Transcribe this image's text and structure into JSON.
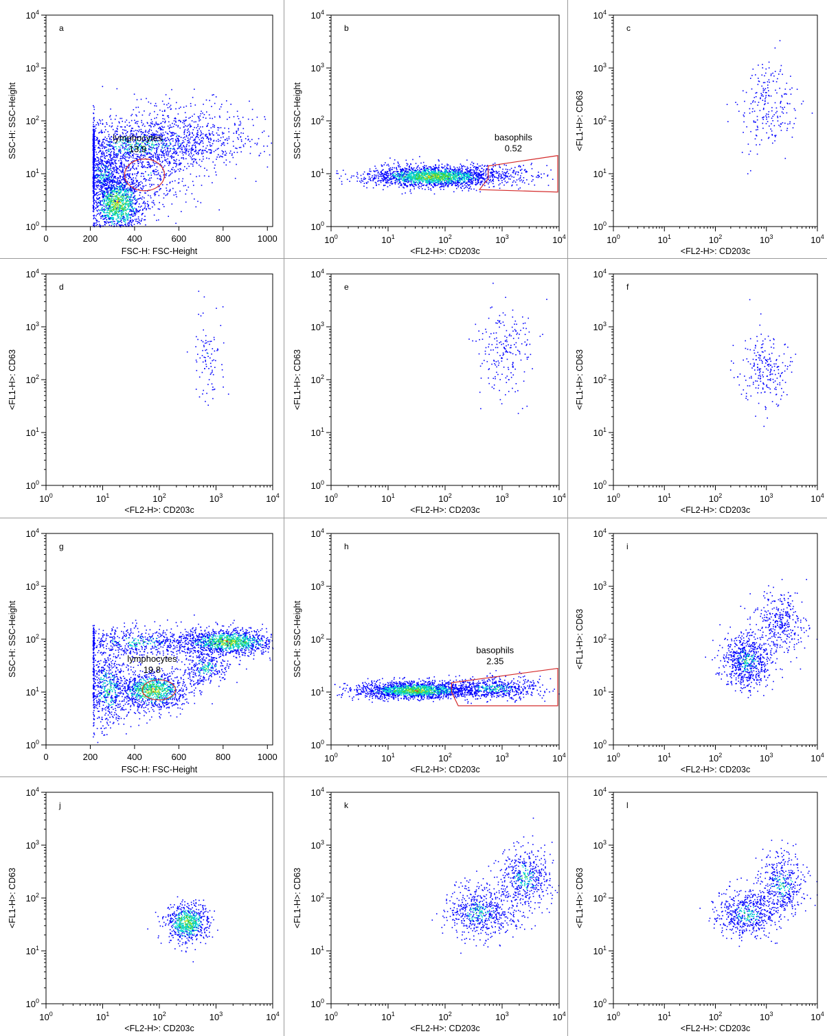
{
  "figure": {
    "colors": {
      "background": "#ffffff",
      "axis": "#000000",
      "gate": "#d42a2a",
      "density_low": "#0000ff",
      "density_mid": "#00d2d2",
      "density_midhigh": "#3cd23c",
      "density_high": "#f0e61e",
      "density_peak": "#ff0000"
    }
  },
  "chart_data": [
    {
      "id": "a",
      "type": "scatter",
      "panel_label": "a",
      "xlabel": "FSC-H: FSC-Height",
      "ylabel": "SSC-H: SSC-Height",
      "xscale": "linear",
      "yscale": "log",
      "xlim": [
        0,
        1024
      ],
      "ylim": [
        1,
        10000
      ],
      "xticks": [
        "0",
        "200",
        "400",
        "600",
        "800",
        "1000"
      ],
      "yticks": [
        "10^0",
        "10^1",
        "10^2",
        "10^3",
        "10^4"
      ],
      "populations": [
        {
          "center": [
            320,
            2.8
          ],
          "spread": [
            60,
            0.3
          ],
          "count": 1300,
          "density": "high"
        },
        {
          "center": [
            420,
            35
          ],
          "spread": [
            220,
            0.22
          ],
          "count": 1100,
          "density": "medium"
        },
        {
          "center": [
            260,
            10
          ],
          "spread": [
            50,
            0.25
          ],
          "count": 500,
          "density": "medium"
        },
        {
          "center": [
            600,
            60
          ],
          "spread": [
            200,
            0.35
          ],
          "count": 500,
          "density": "low"
        },
        {
          "center": [
            450,
            10
          ],
          "spread": [
            120,
            0.35
          ],
          "count": 400,
          "density": "low"
        }
      ],
      "x_cutoff": 210,
      "gates": [
        {
          "name": "lymphocytes",
          "value": "13.9",
          "shape": "ellipse",
          "center": [
            445,
            9.5
          ],
          "rx": 90,
          "ry_decades": 0.3
        }
      ]
    },
    {
      "id": "b",
      "type": "scatter",
      "panel_label": "b",
      "xlabel": "<FL2-H>: CD203c",
      "ylabel": "SSC-H: SSC-Height",
      "xscale": "log",
      "yscale": "log",
      "xlim": [
        1,
        10000
      ],
      "ylim": [
        1,
        10000
      ],
      "xticks": [
        "10^0",
        "10^1",
        "10^2",
        "10^3",
        "10^4"
      ],
      "yticks": [
        "10^0",
        "10^1",
        "10^2",
        "10^3",
        "10^4"
      ],
      "populations": [
        {
          "center": [
            60,
            9
          ],
          "spread": [
            0.55,
            0.1
          ],
          "count": 2000,
          "density": "high"
        },
        {
          "center": [
            1200,
            10
          ],
          "spread": [
            0.45,
            0.12
          ],
          "count": 150,
          "density": "low"
        }
      ],
      "gates": [
        {
          "name": "basophils",
          "value": "0.52",
          "shape": "polygon",
          "points": [
            [
              570,
              8
            ],
            [
              570,
              14
            ],
            [
              10000,
              22
            ],
            [
              10000,
              4.5
            ],
            [
              400,
              5
            ]
          ]
        }
      ]
    },
    {
      "id": "c",
      "type": "scatter",
      "panel_label": "c",
      "xlabel": "<FL2-H>: CD203c",
      "ylabel": "<FL1-H>: CD63",
      "xscale": "log",
      "yscale": "log",
      "xlim": [
        1,
        10000
      ],
      "ylim": [
        1,
        10000
      ],
      "xticks": [
        "10^0",
        "10^1",
        "10^2",
        "10^3",
        "10^4"
      ],
      "yticks": [
        "10^0",
        "10^1",
        "10^2",
        "10^3",
        "10^4"
      ],
      "populations": [
        {
          "center": [
            1100,
            200
          ],
          "spread": [
            0.3,
            0.4
          ],
          "count": 220,
          "density": "low"
        }
      ],
      "gates": []
    },
    {
      "id": "d",
      "type": "scatter",
      "panel_label": "d",
      "xlabel": "<FL2-H>: CD203c",
      "ylabel": "<FL1-H>: CD63",
      "xscale": "log",
      "yscale": "log",
      "xlim": [
        1,
        10000
      ],
      "ylim": [
        1,
        10000
      ],
      "xticks": [
        "10^0",
        "10^1",
        "10^2",
        "10^3",
        "10^4"
      ],
      "yticks": [
        "10^0",
        "10^1",
        "10^2",
        "10^3",
        "10^4"
      ],
      "populations": [
        {
          "center": [
            700,
            300
          ],
          "spread": [
            0.15,
            0.4
          ],
          "count": 90,
          "density": "low"
        }
      ],
      "gates": []
    },
    {
      "id": "e",
      "type": "scatter",
      "panel_label": "e",
      "xlabel": "<FL2-H>: CD203c",
      "ylabel": "<FL1-H>: CD63",
      "xscale": "log",
      "yscale": "log",
      "xlim": [
        1,
        10000
      ],
      "ylim": [
        1,
        10000
      ],
      "xticks": [
        "10^0",
        "10^1",
        "10^2",
        "10^3",
        "10^4"
      ],
      "yticks": [
        "10^0",
        "10^1",
        "10^2",
        "10^3",
        "10^4"
      ],
      "populations": [
        {
          "center": [
            1200,
            350
          ],
          "spread": [
            0.25,
            0.4
          ],
          "count": 200,
          "density": "low"
        }
      ],
      "gates": []
    },
    {
      "id": "f",
      "type": "scatter",
      "panel_label": "f",
      "xlabel": "<FL2-H>: CD203c",
      "ylabel": "<FL1-H>: CD63",
      "xscale": "log",
      "yscale": "log",
      "xlim": [
        1,
        10000
      ],
      "ylim": [
        1,
        10000
      ],
      "xticks": [
        "10^0",
        "10^1",
        "10^2",
        "10^3",
        "10^4"
      ],
      "yticks": [
        "10^0",
        "10^1",
        "10^2",
        "10^3",
        "10^4"
      ],
      "populations": [
        {
          "center": [
            900,
            150
          ],
          "spread": [
            0.25,
            0.35
          ],
          "count": 220,
          "density": "low"
        }
      ],
      "gates": []
    },
    {
      "id": "g",
      "type": "scatter",
      "panel_label": "g",
      "xlabel": "FSC-H: FSC-Height",
      "ylabel": "SSC-H: SSC-Height",
      "xscale": "linear",
      "yscale": "log",
      "xlim": [
        0,
        1024
      ],
      "ylim": [
        1,
        10000
      ],
      "xticks": [
        "0",
        "200",
        "400",
        "600",
        "800",
        "1000"
      ],
      "yticks": [
        "10^0",
        "10^1",
        "10^2",
        "10^3",
        "10^4"
      ],
      "populations": [
        {
          "center": [
            820,
            90
          ],
          "spread": [
            110,
            0.12
          ],
          "count": 1200,
          "density": "high"
        },
        {
          "center": [
            480,
            11
          ],
          "spread": [
            80,
            0.18
          ],
          "count": 1000,
          "density": "high"
        },
        {
          "center": [
            420,
            90
          ],
          "spread": [
            180,
            0.15
          ],
          "count": 600,
          "density": "medium"
        },
        {
          "center": [
            280,
            12
          ],
          "spread": [
            60,
            0.4
          ],
          "count": 700,
          "density": "medium"
        },
        {
          "center": [
            720,
            30
          ],
          "spread": [
            60,
            0.18
          ],
          "count": 300,
          "density": "medium"
        }
      ],
      "x_cutoff": 210,
      "gates": [
        {
          "name": "lymphocytes",
          "value": "19.8",
          "shape": "ellipse",
          "center": [
            510,
            11
          ],
          "rx": 75,
          "ry_decades": 0.19
        }
      ]
    },
    {
      "id": "h",
      "type": "scatter",
      "panel_label": "h",
      "xlabel": "<FL2-H>: CD203c",
      "ylabel": "SSC-H: SSC-Height",
      "xscale": "log",
      "yscale": "log",
      "xlim": [
        1,
        10000
      ],
      "ylim": [
        1,
        10000
      ],
      "xticks": [
        "10^0",
        "10^1",
        "10^2",
        "10^3",
        "10^4"
      ],
      "yticks": [
        "10^0",
        "10^1",
        "10^2",
        "10^3",
        "10^4"
      ],
      "populations": [
        {
          "center": [
            30,
            11
          ],
          "spread": [
            0.5,
            0.08
          ],
          "count": 1700,
          "density": "high"
        },
        {
          "center": [
            700,
            12
          ],
          "spread": [
            0.45,
            0.1
          ],
          "count": 600,
          "density": "medium"
        }
      ],
      "gates": [
        {
          "name": "basophils",
          "value": "2.35",
          "shape": "polygon",
          "points": [
            [
              130,
              15
            ],
            [
              130,
              10
            ],
            [
              170,
              5.5
            ],
            [
              10000,
              5.5
            ],
            [
              10000,
              28
            ]
          ]
        }
      ]
    },
    {
      "id": "i",
      "type": "scatter",
      "panel_label": "i",
      "xlabel": "<FL2-H>: CD203c",
      "ylabel": "<FL1-H>: CD63",
      "xscale": "log",
      "yscale": "log",
      "xlim": [
        1,
        10000
      ],
      "ylim": [
        1,
        10000
      ],
      "xticks": [
        "10^0",
        "10^1",
        "10^2",
        "10^3",
        "10^4"
      ],
      "yticks": [
        "10^0",
        "10^1",
        "10^2",
        "10^3",
        "10^4"
      ],
      "populations": [
        {
          "center": [
            400,
            40
          ],
          "spread": [
            0.25,
            0.25
          ],
          "count": 700,
          "density": "medium"
        },
        {
          "center": [
            1800,
            200
          ],
          "spread": [
            0.25,
            0.3
          ],
          "count": 350,
          "density": "low"
        }
      ],
      "gates": []
    },
    {
      "id": "j",
      "type": "scatter",
      "panel_label": "j",
      "xlabel": "<FL2-H>: CD203c",
      "ylabel": "<FL1-H>: CD63",
      "xscale": "log",
      "yscale": "log",
      "xlim": [
        1,
        10000
      ],
      "ylim": [
        1,
        10000
      ],
      "xticks": [
        "10^0",
        "10^1",
        "10^2",
        "10^3",
        "10^4"
      ],
      "yticks": [
        "10^0",
        "10^1",
        "10^2",
        "10^3",
        "10^4"
      ],
      "populations": [
        {
          "center": [
            300,
            35
          ],
          "spread": [
            0.18,
            0.18
          ],
          "count": 700,
          "density": "high"
        }
      ],
      "gates": []
    },
    {
      "id": "k",
      "type": "scatter",
      "panel_label": "k",
      "xlabel": "<FL2-H>: CD203c",
      "ylabel": "<FL1-H>: CD63",
      "xscale": "log",
      "yscale": "log",
      "xlim": [
        1,
        10000
      ],
      "ylim": [
        1,
        10000
      ],
      "xticks": [
        "10^0",
        "10^1",
        "10^2",
        "10^3",
        "10^4"
      ],
      "yticks": [
        "10^0",
        "10^1",
        "10^2",
        "10^3",
        "10^4"
      ],
      "populations": [
        {
          "center": [
            400,
            55
          ],
          "spread": [
            0.3,
            0.25
          ],
          "count": 600,
          "density": "medium"
        },
        {
          "center": [
            2500,
            250
          ],
          "spread": [
            0.25,
            0.3
          ],
          "count": 500,
          "density": "medium"
        }
      ],
      "gates": []
    },
    {
      "id": "l",
      "type": "scatter",
      "panel_label": "l",
      "xlabel": "<FL2-H>: CD203c",
      "ylabel": "<FL1-H>: CD63",
      "xscale": "log",
      "yscale": "log",
      "xlim": [
        1,
        10000
      ],
      "ylim": [
        1,
        10000
      ],
      "xticks": [
        "10^0",
        "10^1",
        "10^2",
        "10^3",
        "10^4"
      ],
      "yticks": [
        "10^0",
        "10^1",
        "10^2",
        "10^3",
        "10^4"
      ],
      "populations": [
        {
          "center": [
            400,
            50
          ],
          "spread": [
            0.3,
            0.22
          ],
          "count": 550,
          "density": "medium"
        },
        {
          "center": [
            2000,
            180
          ],
          "spread": [
            0.25,
            0.3
          ],
          "count": 450,
          "density": "medium"
        }
      ],
      "gates": []
    }
  ]
}
